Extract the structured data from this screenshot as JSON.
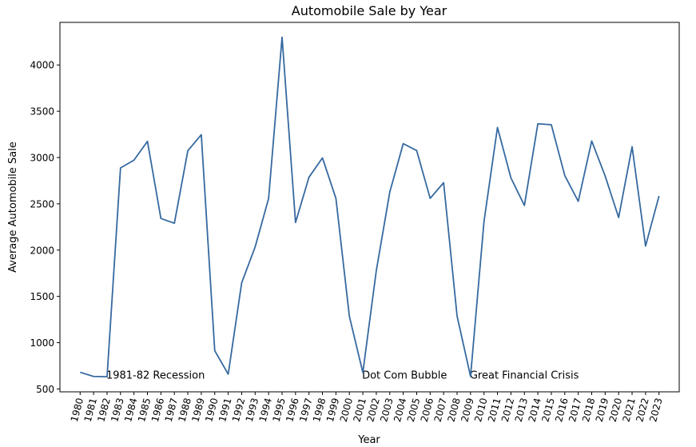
{
  "chart_data": {
    "type": "line",
    "title": "Automobile Sale by Year",
    "xlabel": "Year",
    "ylabel": "Average Automobile Sale",
    "x": [
      1980,
      1981,
      1982,
      1983,
      1984,
      1985,
      1986,
      1987,
      1988,
      1989,
      1990,
      1991,
      1992,
      1993,
      1994,
      1995,
      1996,
      1997,
      1998,
      1999,
      2000,
      2001,
      2002,
      2003,
      2004,
      2005,
      2006,
      2007,
      2008,
      2009,
      2010,
      2011,
      2012,
      2013,
      2014,
      2015,
      2016,
      2017,
      2018,
      2019,
      2020,
      2021,
      2022,
      2023
    ],
    "x_tick_labels": [
      "1980",
      "1981",
      "1982",
      "1983",
      "1984",
      "1985",
      "1986",
      "1987",
      "1988",
      "1989",
      "1990",
      "1991",
      "1992",
      "1993",
      "1994",
      "1995",
      "1996",
      "1997",
      "1998",
      "1999",
      "2000",
      "2001",
      "2002",
      "2003",
      "2004",
      "2005",
      "2006",
      "2007",
      "2008",
      "2009",
      "2010",
      "2011",
      "2012",
      "2013",
      "2014",
      "2015",
      "2016",
      "2017",
      "2018",
      "2019",
      "2020",
      "2021",
      "2022",
      "2023"
    ],
    "series": [
      {
        "values": [
          680,
          635,
          632,
          2888,
          2972,
          3175,
          2342,
          2290,
          3073,
          3247,
          913,
          660,
          1647,
          2034,
          2557,
          4300,
          2298,
          2788,
          2996,
          2559,
          1284,
          678,
          1778,
          2626,
          3150,
          3075,
          2559,
          2728,
          1287,
          636,
          2310,
          3325,
          2780,
          2482,
          3365,
          3354,
          2805,
          2527,
          3179,
          2800,
          2352,
          3117,
          2044,
          2585
        ],
        "color": "#3569a0"
      }
    ],
    "yticks": [
      500,
      1000,
      1500,
      2000,
      2500,
      3000,
      3500,
      4000
    ],
    "y_tick_labels": [
      "500",
      "1000",
      "1500",
      "2000",
      "2500",
      "3000",
      "3500",
      "4000"
    ],
    "xlim": [
      1978.5,
      2024.5
    ],
    "ylim": [
      469,
      4460
    ],
    "grid": false,
    "annotations": [
      {
        "text": "1981-82 Recession",
        "x": 1982,
        "y": 650
      },
      {
        "text": "Dot Com Bubble",
        "x": 2001,
        "y": 650
      },
      {
        "text": "Great Financial Crisis",
        "x": 2009,
        "y": 650
      }
    ]
  }
}
